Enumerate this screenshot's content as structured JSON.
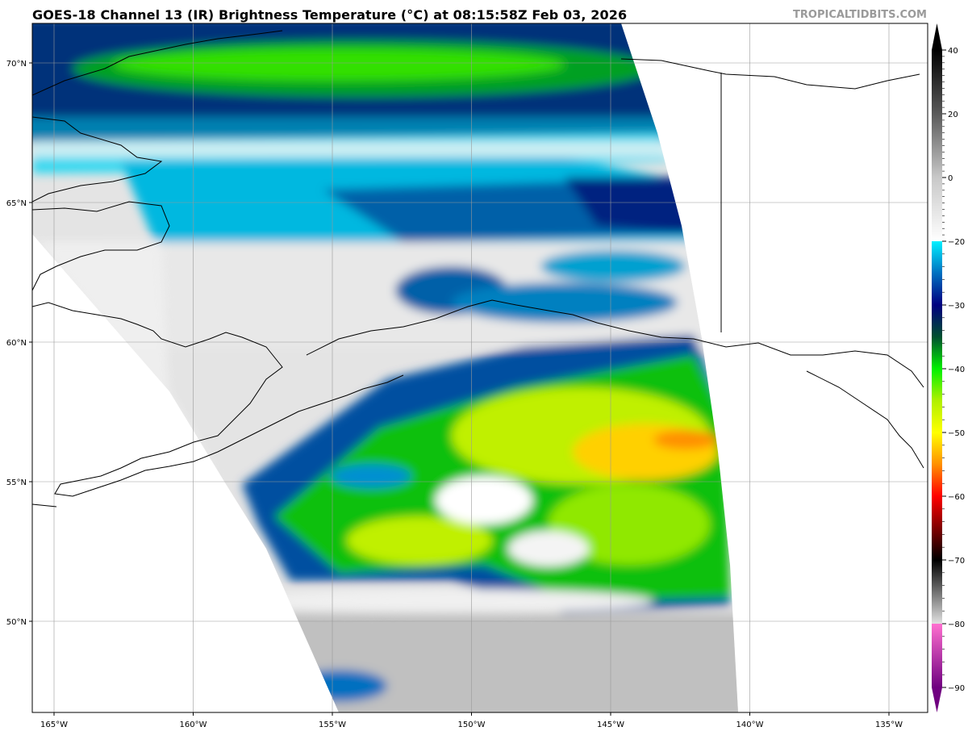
{
  "title": "GOES-18 Channel 13 (IR) Brightness Temperature (°C) at 08:15:58Z Feb 03, 2026",
  "watermark": "TROPICALTIDBITS.COM",
  "map": {
    "lon_ticks": [
      "165°W",
      "160°W",
      "155°W",
      "150°W",
      "145°W",
      "140°W",
      "135°W"
    ],
    "lon_values": [
      -165,
      -160,
      -155,
      -150,
      -145,
      -140,
      -135
    ],
    "lat_ticks": [
      "70°N",
      "65°N",
      "60°N",
      "55°N",
      "50°N"
    ],
    "lat_values": [
      70,
      65,
      60,
      55,
      50
    ],
    "gridlines": true
  },
  "colorbar": {
    "ticks": [
      "40",
      "20",
      "0",
      "−20",
      "−30",
      "−40",
      "−50",
      "−60",
      "−70",
      "−80",
      "−90"
    ],
    "values": [
      40,
      20,
      0,
      -20,
      -30,
      -40,
      -50,
      -60,
      -70,
      -80,
      -90
    ],
    "range": [
      -90,
      40
    ],
    "extend": "both",
    "stops": [
      {
        "value": 40,
        "color": "#000000"
      },
      {
        "value": 20,
        "color": "#5a5a5a"
      },
      {
        "value": 0,
        "color": "#c8c8c8"
      },
      {
        "value": -20,
        "color": "#ffffff"
      },
      {
        "value": -20.01,
        "color": "#00f0ff"
      },
      {
        "value": -25,
        "color": "#0070c0"
      },
      {
        "value": -30,
        "color": "#000080"
      },
      {
        "value": -35,
        "color": "#005030"
      },
      {
        "value": -40,
        "color": "#00f000"
      },
      {
        "value": -45,
        "color": "#b0f000"
      },
      {
        "value": -50,
        "color": "#ffff00"
      },
      {
        "value": -55,
        "color": "#ff9000"
      },
      {
        "value": -60,
        "color": "#ff0000"
      },
      {
        "value": -65,
        "color": "#800000"
      },
      {
        "value": -70,
        "color": "#000000"
      },
      {
        "value": -79.99,
        "color": "#e0e0e0"
      },
      {
        "value": -80,
        "color": "#ff70d0"
      },
      {
        "value": -90,
        "color": "#700080"
      }
    ]
  }
}
